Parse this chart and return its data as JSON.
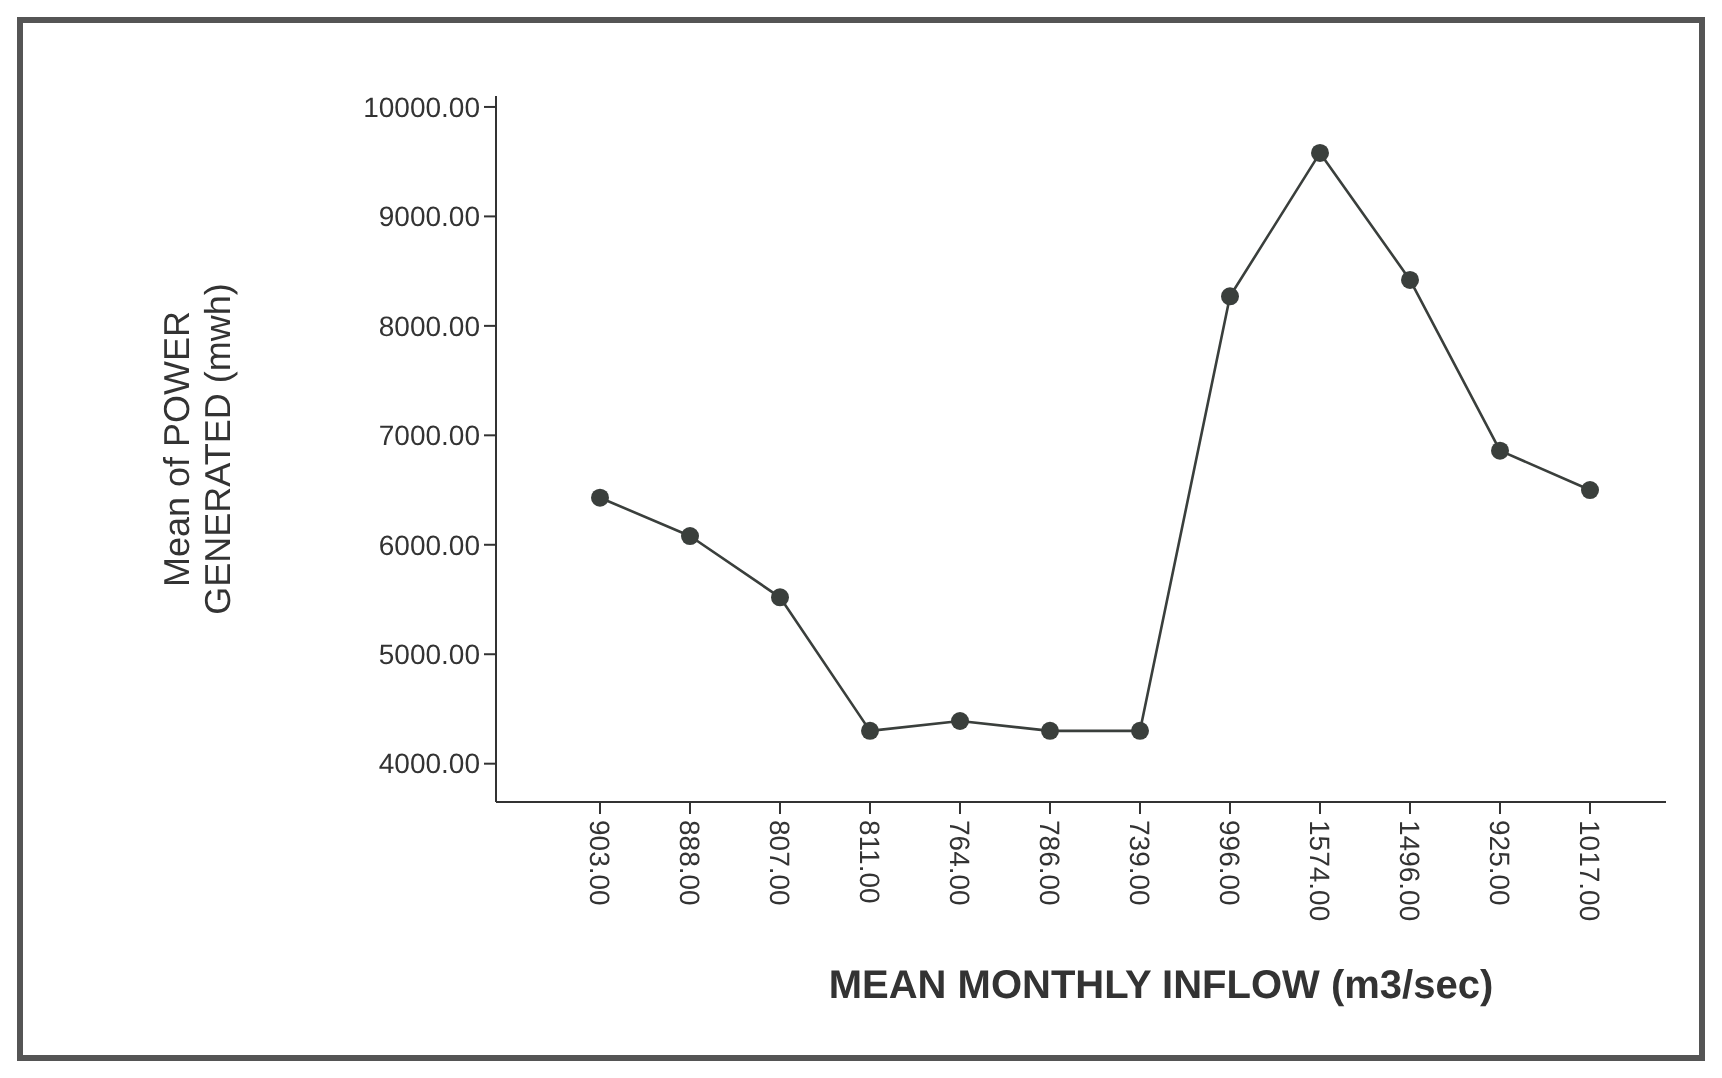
{
  "chart_data": {
    "type": "line",
    "xlabel": "MEAN MONTHLY INFLOW (m3/sec)",
    "ylabel": "Mean of POWER GENERATED (mwh)",
    "categories": [
      "903.00",
      "888.00",
      "807.00",
      "811.00",
      "764.00",
      "786.00",
      "739.00",
      "996.00",
      "1574.00",
      "1496.00",
      "925.00",
      "1017.00"
    ],
    "series": [
      {
        "color": "#3a3f3c",
        "values": [
          6430,
          6080,
          5520,
          4300,
          4390,
          4300,
          4300,
          8270,
          9580,
          8420,
          6860,
          6500
        ]
      }
    ],
    "ylim": [
      3650,
      10100
    ],
    "yticks": [
      {
        "value": 4000,
        "label": "4000.00"
      },
      {
        "value": 5000,
        "label": "5000.00"
      },
      {
        "value": 6000,
        "label": "6000.00"
      },
      {
        "value": 7000,
        "label": "7000.00"
      },
      {
        "value": 8000,
        "label": "8000.00"
      },
      {
        "value": 9000,
        "label": "9000.00"
      },
      {
        "value": 10000,
        "label": "10000.00"
      }
    ],
    "marker": "circle",
    "line_style": "solid",
    "grid": false
  }
}
